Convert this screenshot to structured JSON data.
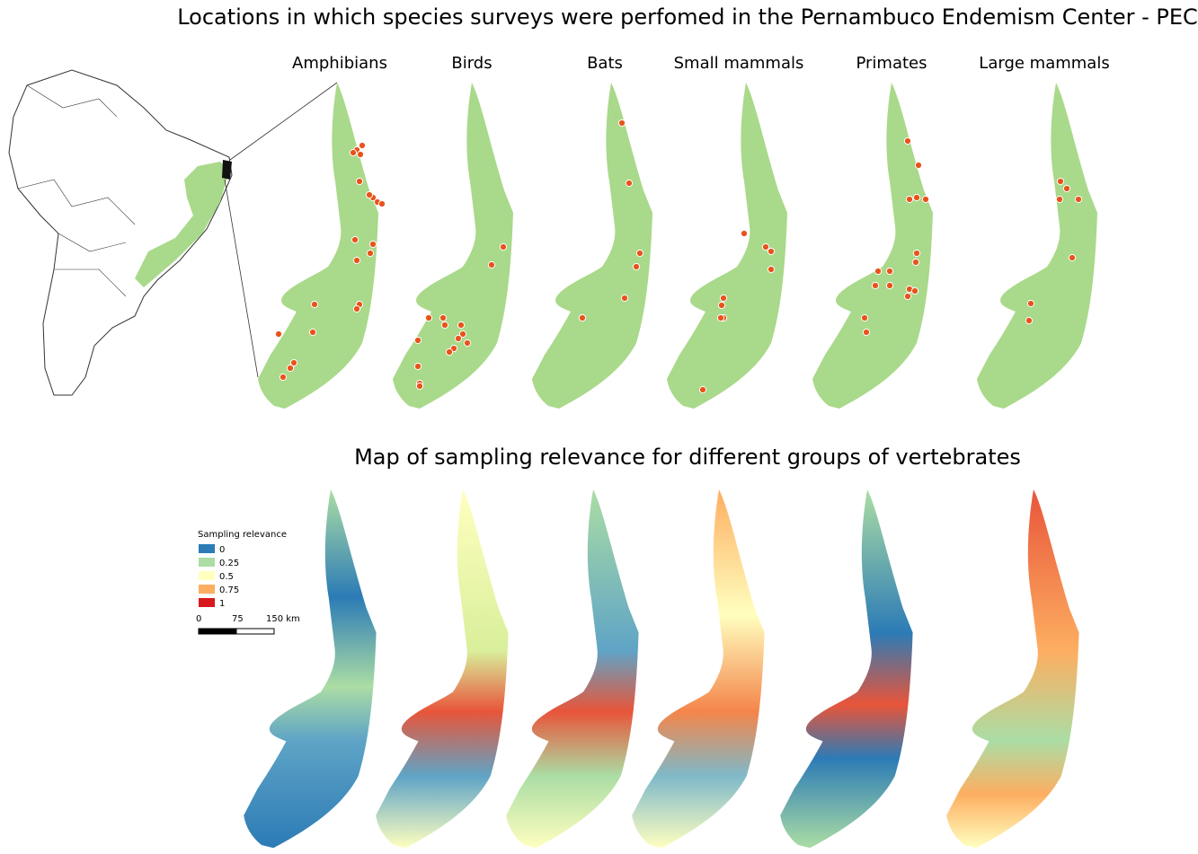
{
  "header": {
    "title": "Locations in which species surveys were perfomed in the Pernambuco Endemism Center - PEC"
  },
  "groups": [
    "Amphibians",
    "Birds",
    "Bats",
    "Small mammals",
    "Primates",
    "Large mammals"
  ],
  "relevance": {
    "title": "Map of sampling relevance for different groups of vertebrates",
    "legend": {
      "title": "Sampling relevance",
      "items": [
        {
          "label": "0",
          "color": "#2c7bb6"
        },
        {
          "label": "0.25",
          "color": "#abdda4"
        },
        {
          "label": "0.5",
          "color": "#ffffbf"
        },
        {
          "label": "0.75",
          "color": "#fdae61"
        },
        {
          "label": "1",
          "color": "#d7191c"
        }
      ]
    },
    "scale_bar": [
      "0",
      "75",
      "150 km"
    ]
  }
}
